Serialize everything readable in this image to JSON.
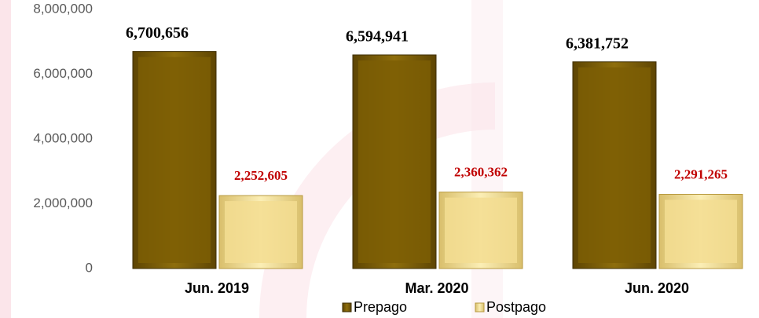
{
  "chart_data": {
    "type": "bar",
    "categories": [
      "Jun. 2019",
      "Mar. 2020",
      "Jun. 2020"
    ],
    "series": [
      {
        "name": "Prepago",
        "color": "#7d5e05",
        "values": [
          6700656,
          6594941,
          6381752
        ],
        "value_labels": [
          "6,700,656",
          "6,594,941",
          "6,381,752"
        ],
        "label_color": "#000000"
      },
      {
        "name": "Postpago",
        "color": "#f3dd92",
        "values": [
          2252605,
          2360362,
          2291265
        ],
        "value_labels": [
          "2,252,605",
          "2,360,362",
          "2,291,265"
        ],
        "label_color": "#c00000"
      }
    ],
    "ylim": [
      0,
      8000000
    ],
    "yticks": [
      0,
      {
        "value": 2000000,
        "label": "2,000,000"
      },
      {
        "value": 4000000,
        "label": "4,000,000"
      },
      {
        "value": 6000000,
        "label": "6,000,000"
      },
      {
        "value": 8000000,
        "label": "8,000,000"
      }
    ],
    "legend": "bottom"
  }
}
